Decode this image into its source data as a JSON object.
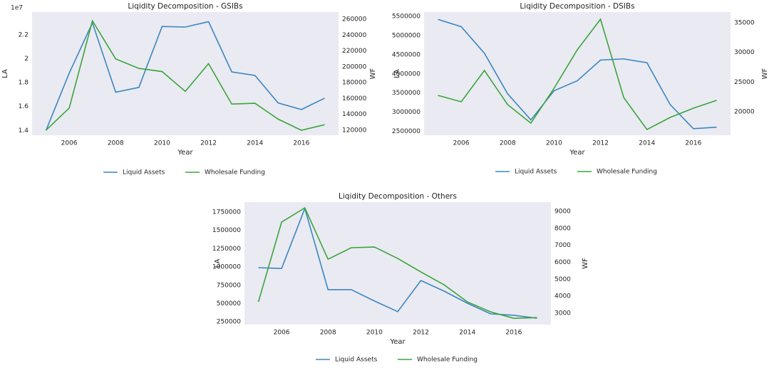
{
  "chart_data": [
    {
      "type": "line",
      "title": "Liqidity Decomposition - GSIBs",
      "xlabel": "Year",
      "ylabel": "LA",
      "y2label": "WF",
      "y_offset_label": "1e7",
      "x": [
        2005,
        2006,
        2007,
        2008,
        2009,
        2010,
        2011,
        2012,
        2013,
        2014,
        2015,
        2016,
        2017
      ],
      "xlim": [
        2004.4,
        2017.6
      ],
      "xticks": [
        2006,
        2008,
        2010,
        2012,
        2014,
        2016
      ],
      "ylim": [
        1.36,
        2.39
      ],
      "yticks": [
        1.4,
        1.6,
        1.8,
        2.0,
        2.2
      ],
      "y2lim": [
        113700,
        269000
      ],
      "y2ticks": [
        120000,
        140000,
        160000,
        180000,
        200000,
        220000,
        240000,
        260000
      ],
      "grid": false,
      "legend": "bottom",
      "series": [
        {
          "name": "Liquid Assets",
          "color": "#3a87c0",
          "values": [
            1.4,
            1.88,
            2.3,
            1.72,
            1.76,
            2.27,
            2.265,
            2.31,
            1.89,
            1.86,
            1.63,
            1.575,
            1.67
          ]
        },
        {
          "name": "Wholesale Funding",
          "color": "#3aa53a",
          "axis": "y2",
          "values": [
            120000,
            148000,
            258000,
            210000,
            198000,
            194000,
            169000,
            204000,
            153000,
            154000,
            134000,
            120000,
            127000
          ]
        }
      ]
    },
    {
      "type": "line",
      "title": "Liqidity Decomposition - DSIBs",
      "xlabel": "Year",
      "ylabel": "LA",
      "y2label": "WF",
      "x": [
        2005,
        2006,
        2007,
        2008,
        2009,
        2010,
        2011,
        2012,
        2013,
        2014,
        2015,
        2016,
        2017
      ],
      "xlim": [
        2004.4,
        2017.6
      ],
      "xticks": [
        2006,
        2008,
        2010,
        2012,
        2014,
        2016
      ],
      "ylim": [
        2400000,
        5610000
      ],
      "yticks": [
        2500000,
        3000000,
        3500000,
        4000000,
        4500000,
        5000000,
        5500000
      ],
      "y2lim": [
        16040,
        36800
      ],
      "y2ticks": [
        20000,
        25000,
        30000,
        35000
      ],
      "grid": false,
      "legend": "bottom",
      "series": [
        {
          "name": "Liquid Assets",
          "color": "#3a87c0",
          "values": [
            5420000,
            5230000,
            4537000,
            3480000,
            2800000,
            3560000,
            3820000,
            4360000,
            4390000,
            4290000,
            3200000,
            2570000,
            2610000
          ]
        },
        {
          "name": "Wholesale Funding",
          "color": "#3aa53a",
          "axis": "y2",
          "values": [
            22760,
            21680,
            26960,
            21200,
            18080,
            23960,
            30440,
            35600,
            22400,
            17000,
            19040,
            20600,
            21920
          ]
        }
      ]
    },
    {
      "type": "line",
      "title": "Liqidity Decomposition - Others",
      "xlabel": "Year",
      "ylabel": "LA",
      "y2label": "WF",
      "x": [
        2005,
        2006,
        2007,
        2008,
        2009,
        2010,
        2011,
        2012,
        2013,
        2014,
        2015,
        2016,
        2017
      ],
      "xlim": [
        2004.4,
        2017.6
      ],
      "xticks": [
        2006,
        2008,
        2010,
        2012,
        2014,
        2016
      ],
      "ylim": [
        213000,
        1886000
      ],
      "yticks": [
        250000,
        500000,
        750000,
        1000000,
        1250000,
        1500000,
        1750000
      ],
      "y2lim": [
        2330,
        9545
      ],
      "y2ticks": [
        3000,
        4000,
        5000,
        6000,
        7000,
        8000,
        9000
      ],
      "grid": false,
      "legend": "bottom",
      "series": [
        {
          "name": "Liquid Assets",
          "color": "#3a87c0",
          "values": [
            990000,
            980000,
            1800000,
            690000,
            690000,
            535000,
            390000,
            815000,
            670000,
            505000,
            360000,
            340000,
            300000
          ]
        },
        {
          "name": "Wholesale Funding",
          "color": "#3aa53a",
          "axis": "y2",
          "values": [
            3670,
            8370,
            9210,
            6180,
            6860,
            6900,
            6230,
            5430,
            4670,
            3670,
            3080,
            2700,
            2740
          ]
        }
      ]
    }
  ]
}
